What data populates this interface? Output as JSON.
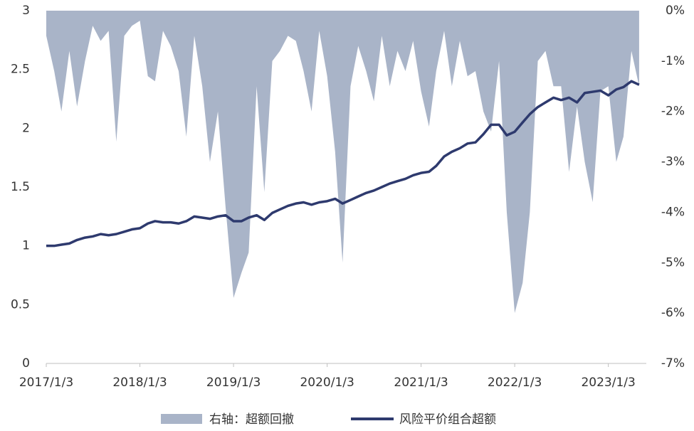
{
  "chart_data": {
    "type": "line",
    "x": [
      "2017/1/3",
      "2017/2/3",
      "2017/3/3",
      "2017/4/3",
      "2017/5/3",
      "2017/6/3",
      "2017/7/3",
      "2017/8/3",
      "2017/9/3",
      "2017/10/3",
      "2017/11/3",
      "2017/12/3",
      "2018/1/3",
      "2018/2/3",
      "2018/3/3",
      "2018/4/3",
      "2018/5/3",
      "2018/6/3",
      "2018/7/3",
      "2018/8/3",
      "2018/9/3",
      "2018/10/3",
      "2018/11/3",
      "2018/12/3",
      "2019/1/3",
      "2019/2/3",
      "2019/3/3",
      "2019/4/3",
      "2019/5/3",
      "2019/6/3",
      "2019/7/3",
      "2019/8/3",
      "2019/9/3",
      "2019/10/3",
      "2019/11/3",
      "2019/12/3",
      "2020/1/3",
      "2020/2/3",
      "2020/3/3",
      "2020/4/3",
      "2020/5/3",
      "2020/6/3",
      "2020/7/3",
      "2020/8/3",
      "2020/9/3",
      "2020/10/3",
      "2020/11/3",
      "2020/12/3",
      "2021/1/3",
      "2021/2/3",
      "2021/3/3",
      "2021/4/3",
      "2021/5/3",
      "2021/6/3",
      "2021/7/3",
      "2021/8/3",
      "2021/9/3",
      "2021/10/3",
      "2021/11/3",
      "2021/12/3",
      "2022/1/3",
      "2022/2/3",
      "2022/3/3",
      "2022/4/3",
      "2022/5/3",
      "2022/6/3",
      "2022/7/3",
      "2022/8/3",
      "2022/9/3",
      "2022/10/3",
      "2022/11/3",
      "2022/12/3",
      "2023/1/3",
      "2023/2/3",
      "2023/3/3",
      "2023/4/3",
      "2023/5/3"
    ],
    "series": [
      {
        "name": "右轴：超额回撤",
        "color": "#a9b4c8",
        "axis": "y2",
        "style": "area",
        "values": [
          -0.5,
          -1.2,
          -2.0,
          -0.8,
          -1.9,
          -1.0,
          -0.3,
          -0.6,
          -0.4,
          -2.6,
          -0.5,
          -0.3,
          -0.2,
          -1.3,
          -1.4,
          -0.4,
          -0.7,
          -1.2,
          -2.5,
          -0.5,
          -1.5,
          -3.0,
          -2.0,
          -3.9,
          -5.7,
          -5.2,
          -4.8,
          -1.5,
          -3.6,
          -1.0,
          -0.8,
          -0.5,
          -0.6,
          -1.2,
          -2.0,
          -0.4,
          -1.3,
          -2.8,
          -5.0,
          -1.5,
          -0.7,
          -1.2,
          -1.8,
          -0.5,
          -1.5,
          -0.8,
          -1.2,
          -0.6,
          -1.6,
          -2.3,
          -1.2,
          -0.4,
          -1.5,
          -0.6,
          -1.3,
          -1.2,
          -2.0,
          -2.4,
          -1.0,
          -4.0,
          -6.0,
          -5.4,
          -4.0,
          -1.0,
          -0.8,
          -1.5,
          -1.5,
          -3.2,
          -1.9,
          -3.0,
          -3.8,
          -1.6,
          -1.5,
          -3.0,
          -2.5,
          -0.8,
          -1.5
        ]
      },
      {
        "name": "风险平价组合超额",
        "color": "#2e3a6e",
        "style": "line",
        "values": [
          1.0,
          1.0,
          1.01,
          1.02,
          1.05,
          1.07,
          1.08,
          1.1,
          1.09,
          1.1,
          1.12,
          1.14,
          1.15,
          1.19,
          1.21,
          1.2,
          1.2,
          1.19,
          1.21,
          1.25,
          1.24,
          1.23,
          1.25,
          1.26,
          1.21,
          1.21,
          1.24,
          1.26,
          1.22,
          1.28,
          1.31,
          1.34,
          1.36,
          1.37,
          1.35,
          1.37,
          1.38,
          1.4,
          1.36,
          1.39,
          1.42,
          1.45,
          1.47,
          1.5,
          1.53,
          1.55,
          1.57,
          1.6,
          1.62,
          1.63,
          1.68,
          1.76,
          1.8,
          1.83,
          1.87,
          1.88,
          1.95,
          2.03,
          2.03,
          1.94,
          1.97,
          2.05,
          2.12,
          2.18,
          2.22,
          2.26,
          2.24,
          2.26,
          2.22,
          2.3,
          2.31,
          2.32,
          2.28,
          2.33,
          2.35,
          2.4,
          2.37
        ]
      }
    ],
    "xlim": [
      "2017/1/3",
      "2023/5/31"
    ],
    "xticks": [
      "2017/1/3",
      "2018/1/3",
      "2019/1/3",
      "2020/1/3",
      "2021/1/3",
      "2022/1/3",
      "2023/1/3"
    ],
    "ylim": [
      0,
      3
    ],
    "yticks": [
      0,
      0.5,
      1,
      1.5,
      2,
      2.5,
      3
    ],
    "y2lim": [
      -7,
      0
    ],
    "y2ticks": [
      {
        "value": 0,
        "label": "0%"
      },
      {
        "value": -1,
        "label": "-1%"
      },
      {
        "value": -2,
        "label": "-2%"
      },
      {
        "value": -3,
        "label": "-3%"
      },
      {
        "value": -4,
        "label": "-4%"
      },
      {
        "value": -5,
        "label": "-5%"
      },
      {
        "value": -6,
        "label": "-6%"
      },
      {
        "value": -7,
        "label": "-7%"
      }
    ],
    "legend": "bottom"
  }
}
